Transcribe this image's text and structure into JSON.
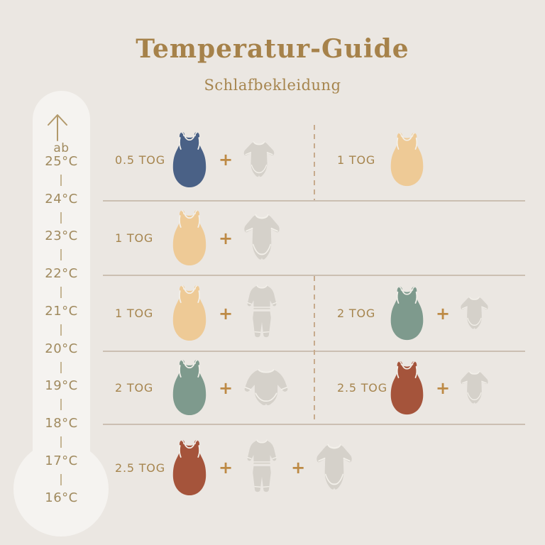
{
  "header": {
    "title": "Temperatur-Guide",
    "subtitle": "Schlafbekleidung"
  },
  "thermometer": {
    "prefix": "ab",
    "temperatures": [
      "25°C",
      "24°C",
      "23°C",
      "22°C",
      "21°C",
      "20°C",
      "19°C",
      "18°C",
      "17°C",
      "16°C"
    ]
  },
  "guide": {
    "plus_sign": "+",
    "rows": [
      {
        "left": {
          "tog_label": "0.5 TOG",
          "bag_color_key": "navy",
          "items": [
            "bodysuit-short"
          ]
        },
        "right": {
          "tog_label": "1 TOG",
          "bag_color_key": "sand",
          "items": []
        }
      },
      {
        "left": {
          "tog_label": "1 TOG",
          "bag_color_key": "sand",
          "items": [
            "bodysuit-short"
          ]
        },
        "right": null
      },
      {
        "left": {
          "tog_label": "1 TOG",
          "bag_color_key": "sand",
          "items": [
            "pajamas"
          ]
        },
        "right": {
          "tog_label": "2 TOG",
          "bag_color_key": "sage",
          "items": [
            "bodysuit-short"
          ]
        }
      },
      {
        "left": {
          "tog_label": "2 TOG",
          "bag_color_key": "sage",
          "items": [
            "bodysuit-long"
          ]
        },
        "right": {
          "tog_label": "2.5 TOG",
          "bag_color_key": "rust",
          "items": [
            "bodysuit-short"
          ]
        }
      },
      {
        "left": {
          "tog_label": "2.5 TOG",
          "bag_color_key": "rust",
          "items": [
            "pajamas",
            "bodysuit-short"
          ]
        },
        "right": null
      }
    ]
  },
  "colors": {
    "background": "#ebe7e2",
    "thermometer": "#f5f3f0",
    "gold_title": "#a6824a",
    "gold_text": "#a6854e",
    "temp_text": "#a08a5e",
    "tick": "#b8a47c",
    "navy": "#4a6186",
    "sand": "#eeca96",
    "sage": "#7e9a8d",
    "rust": "#a5543b",
    "clothing_gray": "#d5d1ca",
    "trim_white": "#f3f0ea",
    "divider": "#cbbfb2",
    "dashed_line": "#c7ab8d",
    "plus": "#bd8a45"
  }
}
